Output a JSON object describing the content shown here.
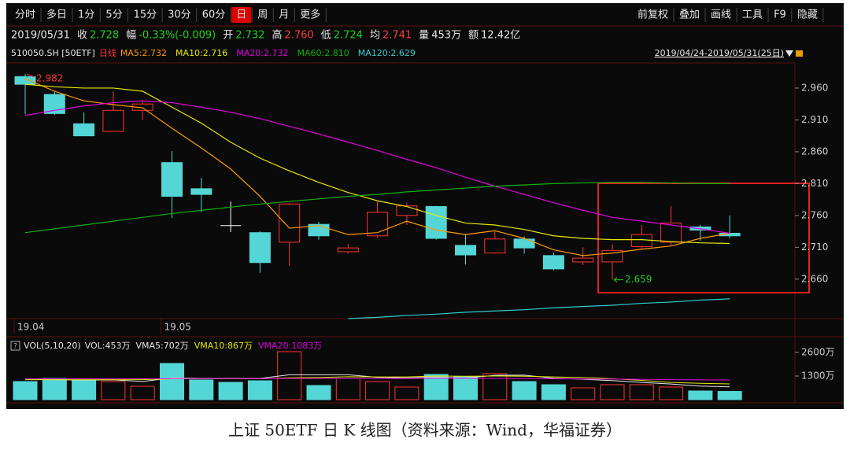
{
  "toolbar": {
    "tabs": [
      "分时",
      "多日",
      "1分",
      "5分",
      "15分",
      "30分",
      "60分",
      "日",
      "周",
      "月",
      "更多"
    ],
    "active_tab": 7,
    "tools": [
      "前复权",
      "叠加",
      "画线",
      "工具",
      "F9",
      "隐藏"
    ]
  },
  "quote": {
    "date": "2019/05/31",
    "items": [
      {
        "label": "收",
        "value": "2.728",
        "color": "#1ed21e"
      },
      {
        "label": "幅",
        "value": "-0.33%(-0.009)",
        "color": "#1ed21e"
      },
      {
        "label": "开",
        "value": "2.732",
        "color": "#1ed21e"
      },
      {
        "label": "高",
        "value": "2.760",
        "color": "#ff3c3c"
      },
      {
        "label": "低",
        "value": "2.724",
        "color": "#1ed21e"
      },
      {
        "label": "均",
        "value": "2.741",
        "color": "#ff3c3c"
      },
      {
        "label": "量",
        "value": "453万",
        "color": "#e6e6e6"
      },
      {
        "label": "额",
        "value": "12.42亿",
        "color": "#e6e6e6"
      }
    ]
  },
  "chart_data": [
    {
      "type": "candlestick",
      "symbol": "510050.SH [50ETF]",
      "period": "日线",
      "range_label": "2019/04/24-2019/05/31(25日)",
      "categories": [
        "19.04",
        null,
        null,
        null,
        null,
        "19.05",
        null,
        null,
        null,
        null,
        null,
        null,
        null,
        null,
        null,
        null,
        null,
        null,
        null,
        null,
        null,
        null,
        null,
        null,
        null
      ],
      "open": [
        2.978,
        2.95,
        2.904,
        2.892,
        2.925,
        2.843,
        2.802,
        2.744,
        2.733,
        2.718,
        2.746,
        2.703,
        2.728,
        2.76,
        2.774,
        2.713,
        2.701,
        2.723,
        2.697,
        2.687,
        2.687,
        2.711,
        2.718,
        2.742,
        2.732
      ],
      "high": [
        2.982,
        2.955,
        2.922,
        2.955,
        2.94,
        2.861,
        2.819,
        2.782,
        2.735,
        2.78,
        2.75,
        2.715,
        2.782,
        2.78,
        2.775,
        2.73,
        2.735,
        2.727,
        2.702,
        2.71,
        2.715,
        2.745,
        2.775,
        2.745,
        2.76
      ],
      "low": [
        2.919,
        2.918,
        2.885,
        2.892,
        2.91,
        2.756,
        2.765,
        2.734,
        2.67,
        2.681,
        2.722,
        2.7,
        2.725,
        2.745,
        2.722,
        2.683,
        2.7,
        2.7,
        2.674,
        2.682,
        2.659,
        2.708,
        2.713,
        2.72,
        2.724
      ],
      "close": [
        2.966,
        2.92,
        2.885,
        2.925,
        2.935,
        2.79,
        2.793,
        2.744,
        2.686,
        2.778,
        2.728,
        2.709,
        2.765,
        2.775,
        2.724,
        2.698,
        2.723,
        2.709,
        2.676,
        2.693,
        2.705,
        2.73,
        2.748,
        2.737,
        2.728
      ],
      "up_color": "#ff3232",
      "down_color": "#54d6d6",
      "doji_color": "#ffffff",
      "series": [
        {
          "name": "MA5:2.732",
          "color": "#ff9900",
          "values": [
            2.975,
            2.955,
            2.94,
            2.934,
            2.929,
            2.897,
            2.866,
            2.833,
            2.79,
            2.74,
            2.744,
            2.73,
            2.733,
            2.751,
            2.737,
            2.73,
            2.736,
            2.724,
            2.706,
            2.697,
            2.701,
            2.707,
            2.712,
            2.724,
            2.732
          ]
        },
        {
          "name": "MA10:2.716",
          "color": "#e8e800",
          "values": [
            2.966,
            2.962,
            2.96,
            2.96,
            2.955,
            2.93,
            2.905,
            2.875,
            2.85,
            2.83,
            2.812,
            2.796,
            2.783,
            2.774,
            2.76,
            2.748,
            2.745,
            2.738,
            2.728,
            2.724,
            2.722,
            2.722,
            2.719,
            2.717,
            2.716
          ]
        },
        {
          "name": "MA20:2.732",
          "color": "#e000e0",
          "values": [
            2.917,
            2.925,
            2.932,
            2.937,
            2.94,
            2.937,
            2.93,
            2.922,
            2.912,
            2.9,
            2.888,
            2.875,
            2.862,
            2.848,
            2.835,
            2.82,
            2.806,
            2.793,
            2.78,
            2.768,
            2.757,
            2.751,
            2.745,
            2.739,
            2.732
          ]
        },
        {
          "name": "MA60:2.810",
          "color": "#10b010",
          "values": [
            2.733,
            2.739,
            2.745,
            2.751,
            2.757,
            2.763,
            2.768,
            2.773,
            2.778,
            2.782,
            2.786,
            2.79,
            2.793,
            2.797,
            2.8,
            2.803,
            2.806,
            2.808,
            2.81,
            2.811,
            2.812,
            2.812,
            2.811,
            2.81,
            2.81
          ]
        },
        {
          "name": "MA120:2.629",
          "color": "#33cccc",
          "values": [
            null,
            null,
            null,
            null,
            null,
            null,
            null,
            null,
            null,
            null,
            null,
            2.598,
            2.6,
            2.603,
            2.605,
            2.608,
            2.61,
            2.612,
            2.615,
            2.617,
            2.619,
            2.622,
            2.624,
            2.627,
            2.629
          ]
        }
      ],
      "ylim": [
        2.598,
        2.997
      ],
      "yticks": [
        {
          "value": 2.96,
          "label": "2.960"
        },
        {
          "value": 2.91,
          "label": "2.910"
        },
        {
          "value": 2.86,
          "label": "2.860"
        },
        {
          "value": 2.81,
          "label": "2.810"
        },
        {
          "value": 2.76,
          "label": "2.760"
        },
        {
          "value": 2.71,
          "label": "2.710"
        },
        {
          "value": 2.66,
          "label": "2.660"
        }
      ],
      "max_label": "2.982",
      "min_label": "2.659",
      "max_color": "#ff3232",
      "min_color": "#1ed21e"
    },
    {
      "type": "bar",
      "title": "VOL(5,10,20)",
      "series": [
        {
          "name": "VOL:453万",
          "color": "#e6e6e6",
          "values": [
            997,
            1170,
            1083,
            997,
            737,
            1993,
            1083,
            953,
            1040,
            2643,
            780,
            1170,
            997,
            693,
            1387,
            1257,
            1430,
            997,
            823,
            650,
            823,
            823,
            693,
            477,
            453
          ]
        },
        {
          "name": "VMA5:702万",
          "color": "#e6e6e6",
          "values": [
            1150,
            1100,
            1080,
            1090,
            1000,
            1190,
            1170,
            1170,
            1170,
            1370,
            1370,
            1370,
            1230,
            1200,
            1230,
            1190,
            1340,
            1350,
            1180,
            1120,
            1050,
            950,
            860,
            750,
            702
          ]
        },
        {
          "name": "VMA10:867万",
          "color": "#e8e800",
          "values": [
            1100,
            1100,
            1100,
            1100,
            1100,
            1150,
            1150,
            1150,
            1150,
            1200,
            1220,
            1260,
            1250,
            1250,
            1300,
            1290,
            1300,
            1290,
            1250,
            1220,
            1150,
            1060,
            950,
            900,
            867
          ]
        },
        {
          "name": "VMA20:1083万",
          "color": "#e000e0",
          "values": [
            1150,
            1150,
            1150,
            1150,
            1150,
            1160,
            1160,
            1160,
            1160,
            1170,
            1170,
            1170,
            1170,
            1170,
            1180,
            1180,
            1170,
            1160,
            1150,
            1140,
            1130,
            1120,
            1100,
            1090,
            1083
          ]
        }
      ],
      "ylim": [
        0,
        3293
      ],
      "yticks": [
        {
          "value": 2600,
          "label": "2600万"
        },
        {
          "value": 1300,
          "label": "1300万"
        }
      ]
    }
  ],
  "caption": "上证 50ETF 日 K 线图（资料来源：Wind，华福证券）"
}
